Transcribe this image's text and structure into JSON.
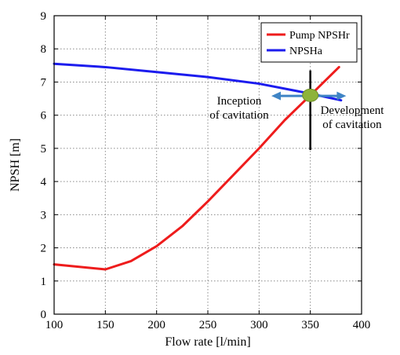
{
  "chart_data": {
    "type": "line",
    "xlabel": "Flow rate [l/min]",
    "ylabel": "NPSH [m]",
    "xlim": [
      100,
      400
    ],
    "ylim": [
      0,
      9
    ],
    "xticks": [
      100,
      150,
      200,
      250,
      300,
      350,
      400
    ],
    "yticks": [
      0,
      1,
      2,
      3,
      4,
      5,
      6,
      7,
      8,
      9
    ],
    "grid": true,
    "legend_position": "top-right",
    "series": [
      {
        "name": "Pump NPSHr",
        "color": "#ee1c1c",
        "x": [
          100,
          150,
          175,
          200,
          225,
          250,
          275,
          300,
          325,
          350,
          378
        ],
        "y": [
          1.5,
          1.35,
          1.6,
          2.05,
          2.65,
          3.4,
          4.2,
          5.0,
          5.85,
          6.6,
          7.45
        ]
      },
      {
        "name": "NPSHa",
        "color": "#1c1cee",
        "x": [
          100,
          150,
          200,
          250,
          300,
          350,
          380
        ],
        "y": [
          7.55,
          7.45,
          7.3,
          7.15,
          6.95,
          6.65,
          6.45
        ]
      }
    ],
    "annotations": [
      {
        "id": "inception",
        "lines": [
          "Inception",
          "of cavitation"
        ]
      },
      {
        "id": "development",
        "lines": [
          "Development",
          "of cavitation"
        ]
      }
    ],
    "operating_point": {
      "x": 350,
      "y": 6.6,
      "color": "#8db33a"
    },
    "vertical_marker": {
      "x": 350,
      "y_from": 4.95,
      "y_to": 7.35
    },
    "double_arrow": {
      "x_from": 312,
      "x_to": 385,
      "y": 6.58,
      "color": "#3f84c5"
    }
  }
}
